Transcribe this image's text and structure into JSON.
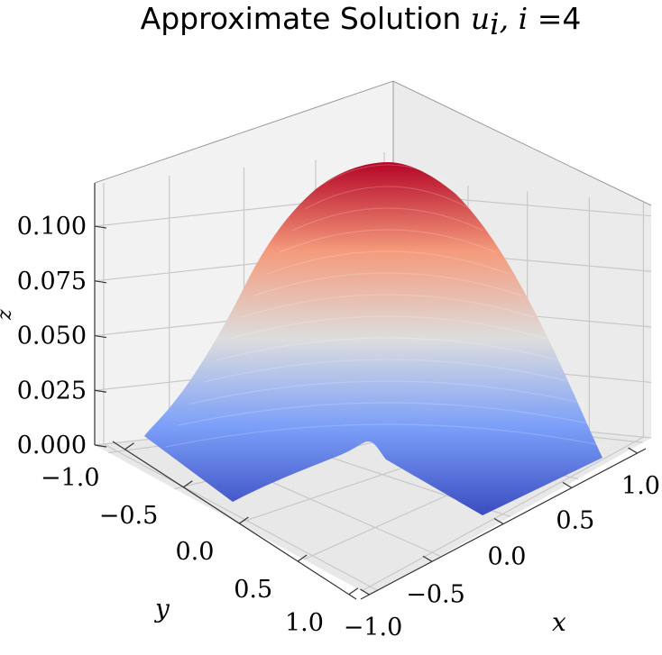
{
  "chart_data": {
    "type": "surface",
    "title": {
      "prefix": "Approximate Solution ",
      "math_symbol": "u",
      "math_subscript": "i",
      "math_rest": ", i =",
      "index": "4"
    },
    "xlabel": "x",
    "ylabel": "y",
    "zlabel": "z",
    "xlim": [
      -1.0,
      1.0
    ],
    "ylim": [
      -1.0,
      1.0
    ],
    "zlim": [
      0.0,
      0.118
    ],
    "xticks": [
      "−1.0",
      "−0.5",
      "0.0",
      "0.5",
      "1.0"
    ],
    "yticks": [
      "−1.0",
      "−0.5",
      "0.0",
      "0.5",
      "1.0"
    ],
    "zticks": [
      "0.000",
      "0.025",
      "0.050",
      "0.075",
      "0.100"
    ],
    "domain": "L-shaped region [-1,1]x[-1,1] excluding the quadrant x>0, y<0",
    "max_value": 0.118,
    "min_value": 0.0,
    "colormap": "coolwarm",
    "grid": true
  }
}
